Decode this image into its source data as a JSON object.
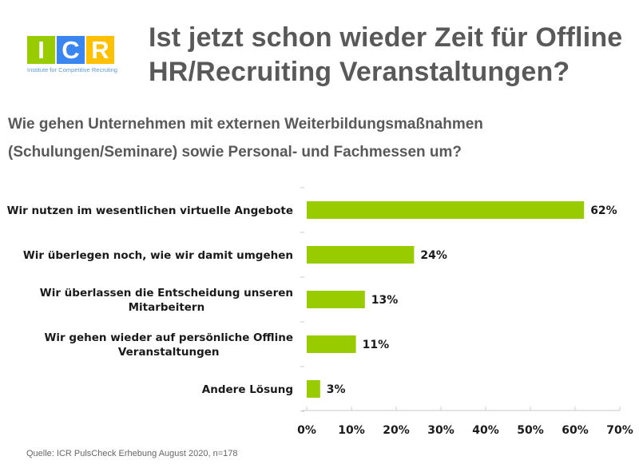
{
  "logo": {
    "letters": [
      {
        "char": "I",
        "color": "#99cc00"
      },
      {
        "char": "C",
        "color": "#3a86f0"
      },
      {
        "char": "R",
        "color": "#ffc000"
      }
    ],
    "tagline": "Institute for Competitive Recruting"
  },
  "header": {
    "title_line1": "Ist jetzt schon wieder Zeit für Offline",
    "title_line2": "HR/Recruiting Veranstaltungen?"
  },
  "question": {
    "line1": "Wie gehen Unternehmen mit externen Weiterbildungsmaßnahmen",
    "line2": "(Schulungen/Seminare) sowie Personal- und Fachmessen um?"
  },
  "footer": {
    "source": "Quelle: ICR PulsCheck Erhebung August 2020, n=178"
  },
  "chart_data": {
    "type": "bar",
    "orientation": "horizontal",
    "categories": [
      [
        "Wir nutzen im wesentlichen virtuelle Angebote"
      ],
      [
        "Wir überlegen noch, wie wir damit umgehen"
      ],
      [
        "Wir überlassen die Entscheidung unseren",
        "Mitarbeitern"
      ],
      [
        "Wir gehen wieder auf persönliche Offline",
        "Veranstaltungen"
      ],
      [
        "Andere Lösung"
      ]
    ],
    "values": [
      62,
      24,
      13,
      11,
      3
    ],
    "value_labels": [
      "62%",
      "24%",
      "13%",
      "11%",
      "3%"
    ],
    "xlim": [
      0,
      70
    ],
    "x_ticks": [
      0,
      10,
      20,
      30,
      40,
      50,
      60,
      70
    ],
    "x_tick_labels": [
      "0%",
      "10%",
      "20%",
      "30%",
      "40%",
      "50%",
      "60%",
      "70%"
    ],
    "bar_color": "#99cc00",
    "grid": false,
    "legend": "none"
  }
}
